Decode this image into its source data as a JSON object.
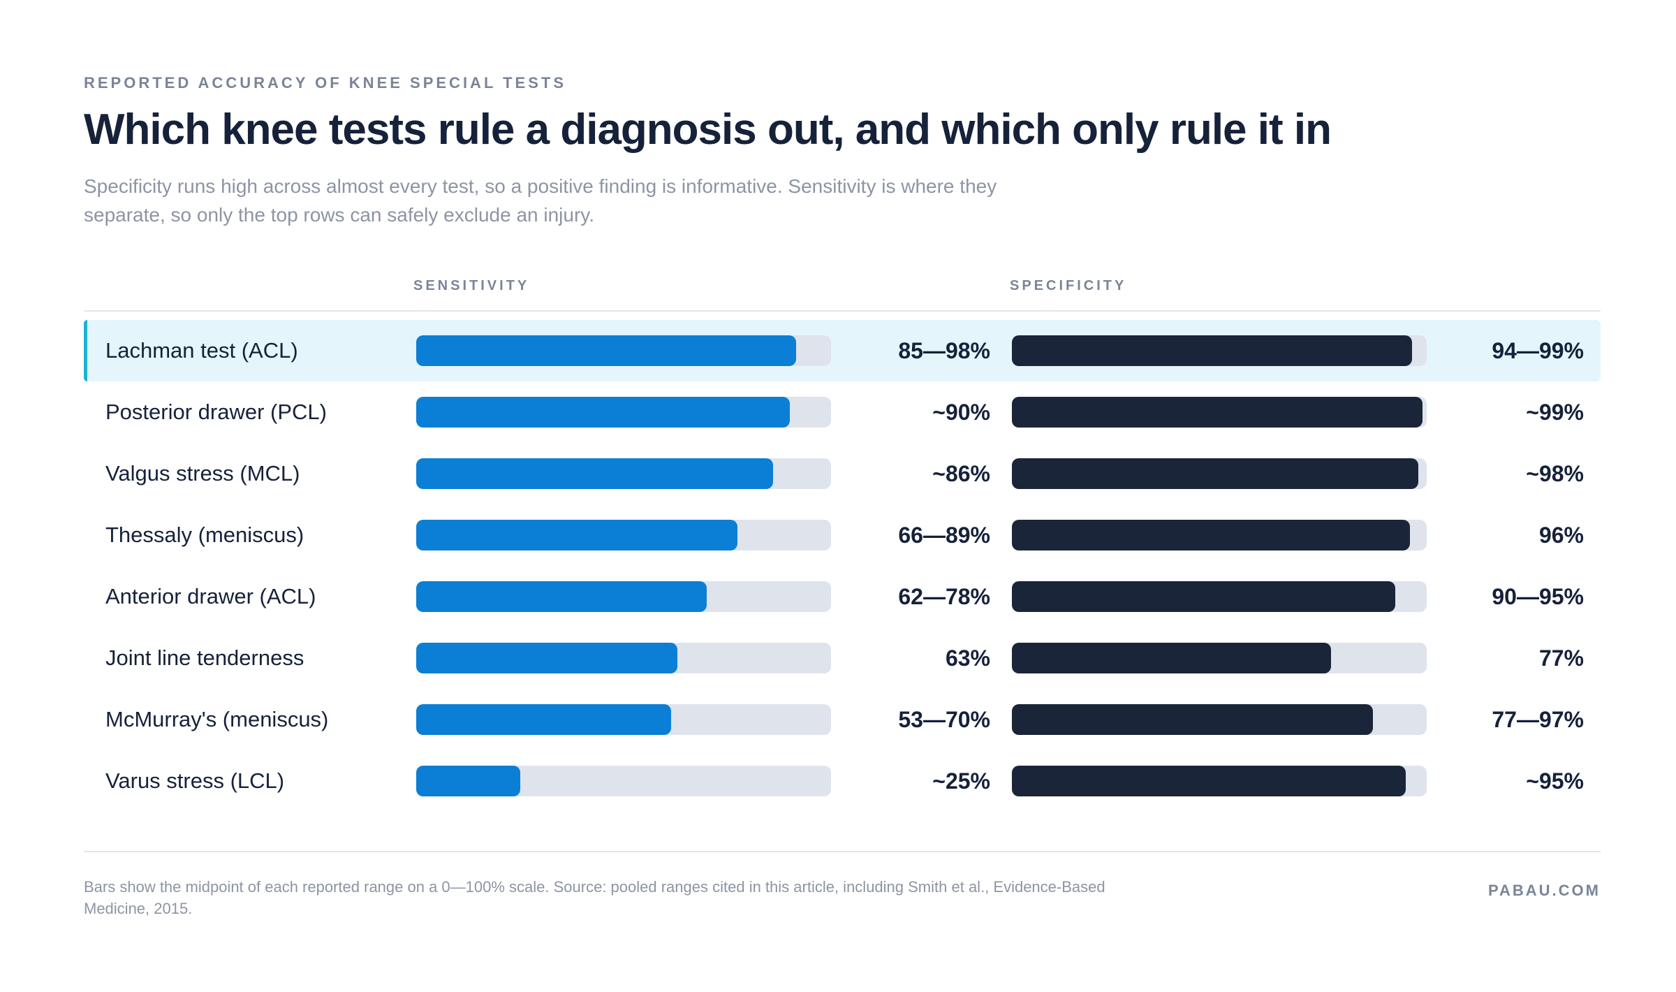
{
  "eyebrow": "REPORTED ACCURACY OF KNEE SPECIAL TESTS",
  "title": "Which knee tests rule a diagnosis out, and which only rule it in",
  "subtitle": "Specificity runs high across almost every test, so a positive finding is informative. Sensitivity is where they separate, so only the top rows can safely exclude an injury.",
  "footnote": "Bars show the midpoint of each reported range on a 0—100% scale. Source: pooled ranges cited in this article, including Smith et al., Evidence-Based Medicine, 2015.",
  "brand": "PABAU.COM",
  "colors": {
    "sensitivity": "#0a7fd5",
    "specificity": "#1b2539",
    "track": "#dfe3ec",
    "highlight": "#e4f6fb",
    "highlight_accent": "#1ab4d7"
  },
  "chart_data": {
    "type": "bar",
    "orientation": "horizontal",
    "xlim": [
      0,
      100
    ],
    "grid": false,
    "highlighted_row": 0,
    "categories": [
      "Lachman test (ACL)",
      "Posterior drawer (PCL)",
      "Valgus stress (MCL)",
      "Thessaly (meniscus)",
      "Anterior drawer (ACL)",
      "Joint line tenderness",
      "McMurray's (meniscus)",
      "Varus stress (LCL)"
    ],
    "series": [
      {
        "name": "SENSITIVITY",
        "values": [
          91.5,
          90,
          86,
          77.5,
          70,
          63,
          61.5,
          25
        ],
        "labels": [
          "85—98%",
          "~90%",
          "~86%",
          "66—89%",
          "62—78%",
          "63%",
          "53—70%",
          "~25%"
        ]
      },
      {
        "name": "SPECIFICITY",
        "values": [
          96.5,
          99,
          98,
          96,
          92.5,
          77,
          87,
          95
        ],
        "labels": [
          "94—99%",
          "~99%",
          "~98%",
          "96%",
          "90—95%",
          "77%",
          "77—97%",
          "~95%"
        ]
      }
    ]
  }
}
